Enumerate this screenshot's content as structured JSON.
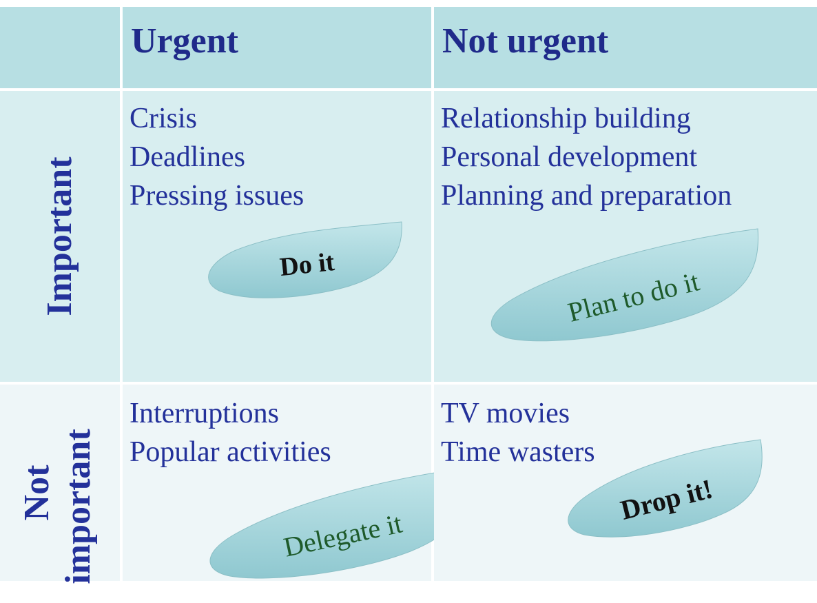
{
  "columns": {
    "urgent": "Urgent",
    "not_urgent": "Not urgent"
  },
  "rows": {
    "important": "Important",
    "not_important_line1": "Not",
    "not_important_line2": "important"
  },
  "quadrants": {
    "urgent_important": {
      "items": [
        "Crisis",
        "Deadlines",
        "Pressing issues"
      ],
      "action": "Do it"
    },
    "not_urgent_important": {
      "items": [
        "Relationship building",
        "Personal development",
        "Planning and preparation"
      ],
      "action": "Plan to do it"
    },
    "urgent_not_important": {
      "items": [
        "Interruptions",
        "Popular activities"
      ],
      "action": "Delegate it"
    },
    "not_urgent_not_important": {
      "items": [
        "TV movies",
        "Time wasters"
      ],
      "action": "Drop it!"
    }
  },
  "colors": {
    "header_fill": "#b7dfe3",
    "important_row_fill": "#d8eef0",
    "not_important_row_fill": "#eef6f8",
    "heading_text": "#1f2a8a",
    "leaf_fill": "#a6d6dc",
    "delegate_plan_text": "#1e5a2a",
    "do_drop_text": "#111111"
  }
}
